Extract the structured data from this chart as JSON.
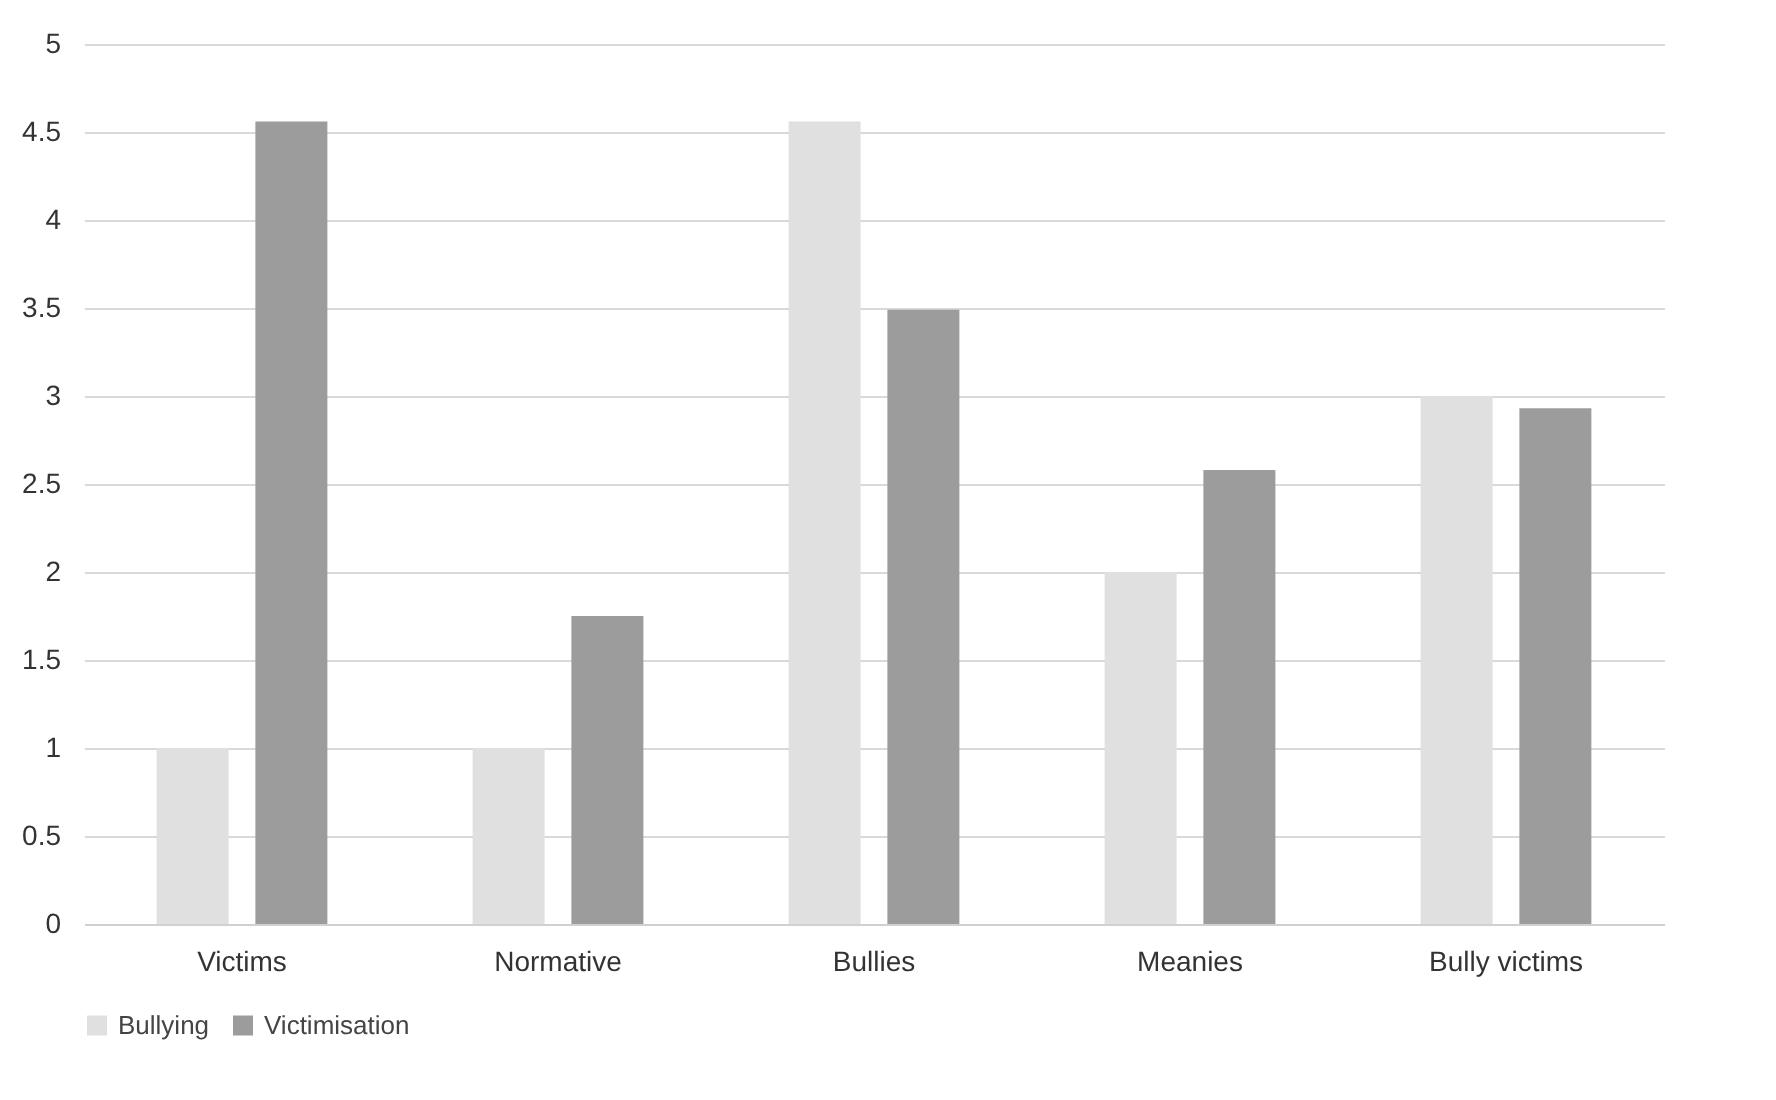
{
  "chart_data": {
    "type": "bar",
    "categories": [
      "Victims",
      "Normative",
      "Bullies",
      "Meanies",
      "Bully victims"
    ],
    "series": [
      {
        "name": "Bullying",
        "color": "#e0e0e0",
        "values": [
          1,
          1,
          4.56,
          2,
          3
        ]
      },
      {
        "name": "Victimisation",
        "color": "#9c9c9c",
        "values": [
          4.56,
          1.75,
          3.49,
          2.58,
          2.93
        ]
      }
    ],
    "ylim": [
      0,
      5
    ],
    "yticks": [
      0,
      0.5,
      1,
      1.5,
      2,
      2.5,
      3,
      3.5,
      4,
      4.5,
      5
    ],
    "grid": "y",
    "legend": "bottom"
  }
}
